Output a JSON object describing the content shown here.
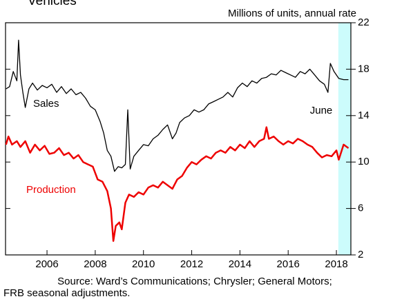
{
  "chart_data": {
    "type": "line",
    "title": "Vehicles",
    "y_label": "Millions of units, annual rate",
    "annotations": [
      "June"
    ],
    "source": [
      "Source:  Ward’s Communications; Chrysler; General Motors;",
      "FRB seasonal adjustments."
    ],
    "highlight": [
      2018.08,
      2018.6
    ],
    "highlight_color": "#ccfcfc",
    "xlim": [
      2004.28,
      2018.6
    ],
    "xticks": [
      2006,
      2008,
      2010,
      2012,
      2014,
      2016,
      2018
    ],
    "ylim": [
      2,
      22
    ],
    "yticks": [
      2,
      6,
      10,
      14,
      18,
      22
    ],
    "series": [
      {
        "name": "Sales",
        "color": "#000000",
        "x": [
          2004.3,
          2004.45,
          2004.6,
          2004.75,
          2004.82,
          2004.9,
          2005.0,
          2005.1,
          2005.25,
          2005.4,
          2005.6,
          2005.8,
          2006.0,
          2006.2,
          2006.4,
          2006.6,
          2006.8,
          2007.0,
          2007.2,
          2007.4,
          2007.6,
          2007.8,
          2008.0,
          2008.2,
          2008.35,
          2008.5,
          2008.65,
          2008.8,
          2008.95,
          2009.1,
          2009.25,
          2009.35,
          2009.45,
          2009.6,
          2009.8,
          2010.0,
          2010.2,
          2010.4,
          2010.6,
          2010.8,
          2011.0,
          2011.2,
          2011.35,
          2011.5,
          2011.7,
          2011.9,
          2012.1,
          2012.3,
          2012.5,
          2012.7,
          2012.9,
          2013.1,
          2013.3,
          2013.5,
          2013.7,
          2013.9,
          2014.1,
          2014.3,
          2014.5,
          2014.7,
          2014.9,
          2015.1,
          2015.3,
          2015.5,
          2015.7,
          2015.9,
          2016.1,
          2016.3,
          2016.5,
          2016.7,
          2016.9,
          2017.1,
          2017.3,
          2017.5,
          2017.65,
          2017.75,
          2017.9,
          2018.1,
          2018.3,
          2018.5
        ],
        "values": [
          16.3,
          16.5,
          17.8,
          17.0,
          20.5,
          17.5,
          16.0,
          14.7,
          16.3,
          16.8,
          16.2,
          16.6,
          16.4,
          16.7,
          16.0,
          16.5,
          15.9,
          16.3,
          15.8,
          16.0,
          15.5,
          14.8,
          14.5,
          13.5,
          12.5,
          11.0,
          10.5,
          9.2,
          9.6,
          9.5,
          9.8,
          14.5,
          9.4,
          10.5,
          11.0,
          11.5,
          11.4,
          12.0,
          12.3,
          12.8,
          13.2,
          12.0,
          12.5,
          13.4,
          13.8,
          14.0,
          14.5,
          14.3,
          14.5,
          15.0,
          15.2,
          15.4,
          15.6,
          16.0,
          15.6,
          16.4,
          16.8,
          16.5,
          17.0,
          16.8,
          17.2,
          17.3,
          17.6,
          17.5,
          17.9,
          17.7,
          17.5,
          17.3,
          17.8,
          17.6,
          18.0,
          17.5,
          17.0,
          16.7,
          16.0,
          18.5,
          17.8,
          17.2,
          17.1,
          17.1
        ]
      },
      {
        "name": "Production",
        "color": "#ee0000",
        "x": [
          2004.3,
          2004.4,
          2004.55,
          2004.75,
          2004.9,
          2005.1,
          2005.3,
          2005.5,
          2005.7,
          2005.9,
          2006.1,
          2006.3,
          2006.5,
          2006.7,
          2006.9,
          2007.1,
          2007.3,
          2007.5,
          2007.7,
          2007.9,
          2008.1,
          2008.3,
          2008.5,
          2008.65,
          2008.75,
          2008.85,
          2009.0,
          2009.1,
          2009.25,
          2009.4,
          2009.6,
          2009.8,
          2010.0,
          2010.2,
          2010.4,
          2010.6,
          2010.8,
          2011.0,
          2011.2,
          2011.4,
          2011.6,
          2011.8,
          2012.0,
          2012.2,
          2012.4,
          2012.6,
          2012.8,
          2013.0,
          2013.2,
          2013.4,
          2013.6,
          2013.8,
          2014.0,
          2014.2,
          2014.4,
          2014.6,
          2014.8,
          2015.0,
          2015.1,
          2015.2,
          2015.4,
          2015.6,
          2015.8,
          2016.0,
          2016.2,
          2016.4,
          2016.6,
          2016.8,
          2017.0,
          2017.2,
          2017.4,
          2017.6,
          2017.8,
          2018.0,
          2018.1,
          2018.3,
          2018.5
        ],
        "values": [
          11.5,
          12.2,
          11.5,
          11.8,
          11.3,
          11.8,
          10.8,
          11.5,
          11.0,
          11.4,
          10.7,
          10.8,
          11.2,
          10.6,
          10.8,
          10.3,
          10.6,
          10.0,
          9.8,
          9.6,
          8.5,
          8.3,
          7.5,
          6.0,
          3.2,
          4.5,
          4.8,
          4.2,
          6.5,
          7.2,
          7.0,
          7.4,
          7.2,
          7.8,
          8.0,
          7.8,
          8.3,
          8.0,
          7.7,
          8.5,
          8.8,
          9.5,
          10.0,
          9.8,
          10.2,
          10.5,
          10.3,
          10.8,
          11.0,
          10.8,
          11.3,
          11.0,
          11.5,
          11.2,
          11.8,
          11.3,
          11.8,
          12.0,
          13.0,
          12.0,
          12.2,
          11.8,
          11.5,
          11.8,
          11.6,
          12.0,
          11.8,
          11.5,
          11.3,
          10.8,
          10.4,
          10.6,
          10.5,
          11.0,
          10.2,
          11.5,
          11.2
        ]
      }
    ]
  }
}
